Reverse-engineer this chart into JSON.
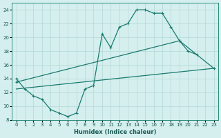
{
  "xlabel": "Humidex (Indice chaleur)",
  "bg_color": "#d4efee",
  "grid_color": "#b8dbd9",
  "line_color": "#1a7a6e",
  "xlim": [
    -0.5,
    23.5
  ],
  "ylim": [
    8,
    25
  ],
  "xticks": [
    0,
    1,
    2,
    3,
    4,
    5,
    6,
    7,
    8,
    9,
    10,
    11,
    12,
    13,
    14,
    15,
    16,
    17,
    18,
    19,
    20,
    21,
    22,
    23
  ],
  "yticks": [
    8,
    10,
    12,
    14,
    16,
    18,
    20,
    22,
    24
  ],
  "line1_x": [
    0,
    1,
    2,
    3,
    4,
    5,
    6,
    7,
    8,
    9,
    10,
    11,
    12,
    13,
    14,
    15,
    16,
    17,
    18,
    19,
    20,
    21
  ],
  "line1_y": [
    14.0,
    12.5,
    11.5,
    11.0,
    9.5,
    9.0,
    8.5,
    9.0,
    12.5,
    13.0,
    20.5,
    18.5,
    21.5,
    22.0,
    24.0,
    24.0,
    23.5,
    23.5,
    21.5,
    19.5,
    18.0,
    17.5
  ],
  "line2_x": [
    0,
    23
  ],
  "line2_y": [
    12.5,
    15.5
  ],
  "line3_x": [
    0,
    19,
    23
  ],
  "line3_y": [
    13.5,
    19.5,
    15.5
  ],
  "xlabel_fontsize": 6.0,
  "tick_fontsize": 5.0
}
